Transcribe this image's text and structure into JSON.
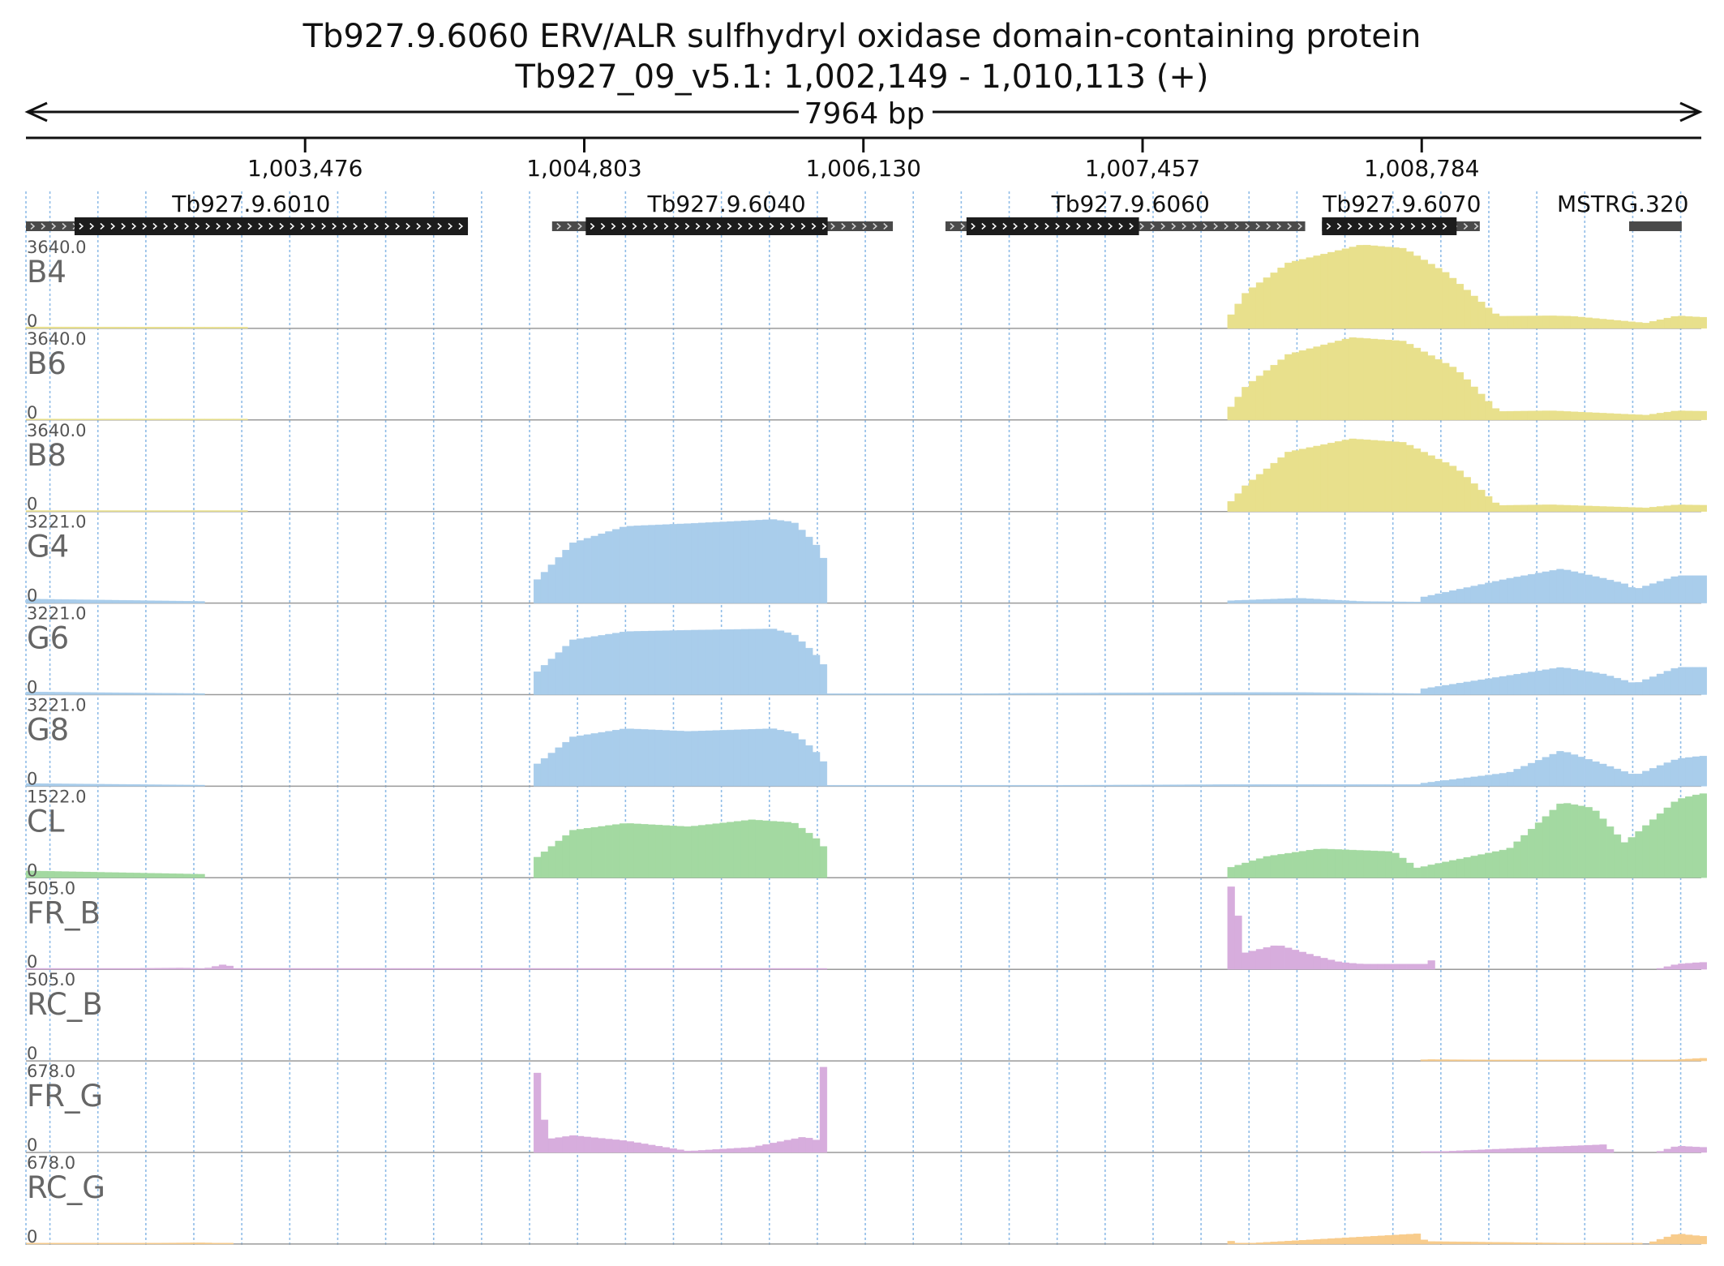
{
  "title": "Tb927.9.6060  ERV/ALR sulfhydryl oxidase domain-containing protein",
  "subtitle": "Tb927_09_v5.1: 1,002,149 - 1,010,113 (+)",
  "span_label": "7964 bp",
  "colors": {
    "bloodstream": "#e8e08c",
    "procyclic": "#a9cdeb",
    "cl": "#a3d9a1",
    "fr": "#d7addd",
    "rc": "#f8cc8c",
    "gridline": "#6aa6e0",
    "gene_box": "#1c1c1c",
    "utr_box": "#4a4a4a"
  },
  "chart_data": {
    "type": "area",
    "region": {
      "chrom": "Tb927_09_v5.1",
      "start": 1002149,
      "end": 1010113,
      "strand": "+",
      "length_bp": 7964
    },
    "ruler_ticks": [
      {
        "pos": 1003476,
        "label": "1,003,476"
      },
      {
        "pos": 1004803,
        "label": "1,004,803"
      },
      {
        "pos": 1006130,
        "label": "1,006,130"
      },
      {
        "pos": 1007457,
        "label": "1,007,457"
      },
      {
        "pos": 1008784,
        "label": "1,008,784"
      }
    ],
    "genes": [
      {
        "name": "Tb927.9.6010",
        "start": 1002149,
        "end": 1004250,
        "cds_start": 1002380,
        "cds_end": 1004250,
        "strand": "+",
        "label_pos": 1003220
      },
      {
        "name": "Tb927.9.6040",
        "start": 1004650,
        "end": 1006270,
        "cds_start": 1004810,
        "cds_end": 1005960,
        "strand": "+",
        "label_pos": 1005480
      },
      {
        "name": "Tb927.9.6060",
        "start": 1006520,
        "end": 1008230,
        "cds_start": 1006620,
        "cds_end": 1007440,
        "strand": "+",
        "label_pos": 1007400
      },
      {
        "name": "Tb927.9.6070",
        "start": 1008310,
        "end": 1009060,
        "cds_start": 1008310,
        "cds_end": 1008950,
        "strand": "+",
        "label_pos": 1008690
      },
      {
        "name": "MSTRG.320",
        "start": 1009770,
        "end": 1010020,
        "cds_start": null,
        "cds_end": null,
        "strand": "",
        "label_pos": 1009740
      }
    ],
    "tracks": [
      {
        "name": "B4",
        "max": 3640.0,
        "max_label": "3640.0",
        "min_label": "0",
        "color": "#e8e08c",
        "profile": [
          [
            1002149,
            60
          ],
          [
            1003200,
            50
          ],
          [
            1003200,
            0
          ],
          [
            1007850,
            0
          ],
          [
            1007850,
            200
          ],
          [
            1007950,
            1500
          ],
          [
            1008150,
            2700
          ],
          [
            1008500,
            3450
          ],
          [
            1008700,
            3300
          ],
          [
            1008900,
            2300
          ],
          [
            1009150,
            500
          ],
          [
            1009400,
            520
          ],
          [
            1009500,
            500
          ],
          [
            1009850,
            220
          ],
          [
            1010000,
            520
          ],
          [
            1010113,
            460
          ]
        ]
      },
      {
        "name": "B6",
        "max": 3640.0,
        "max_label": "3640.0",
        "min_label": "0",
        "color": "#e8e08c",
        "profile": [
          [
            1002149,
            40
          ],
          [
            1003200,
            30
          ],
          [
            1003200,
            0
          ],
          [
            1007850,
            0
          ],
          [
            1007850,
            200
          ],
          [
            1007950,
            1400
          ],
          [
            1008150,
            2700
          ],
          [
            1008450,
            3400
          ],
          [
            1008700,
            3250
          ],
          [
            1008950,
            2100
          ],
          [
            1009150,
            350
          ],
          [
            1009400,
            380
          ],
          [
            1009850,
            200
          ],
          [
            1010000,
            380
          ],
          [
            1010113,
            360
          ]
        ]
      },
      {
        "name": "B8",
        "max": 3640.0,
        "max_label": "3640.0",
        "min_label": "0",
        "color": "#e8e08c",
        "profile": [
          [
            1002149,
            30
          ],
          [
            1003200,
            20
          ],
          [
            1003200,
            0
          ],
          [
            1007850,
            0
          ],
          [
            1007850,
            150
          ],
          [
            1007950,
            1100
          ],
          [
            1008150,
            2450
          ],
          [
            1008450,
            3000
          ],
          [
            1008700,
            2850
          ],
          [
            1008950,
            1800
          ],
          [
            1009150,
            250
          ],
          [
            1009400,
            280
          ],
          [
            1009850,
            150
          ],
          [
            1010000,
            280
          ],
          [
            1010113,
            260
          ]
        ]
      },
      {
        "name": "G4",
        "max": 3221.0,
        "max_label": "3221.0",
        "min_label": "0",
        "color": "#a9cdeb",
        "profile": [
          [
            1002149,
            150
          ],
          [
            1003000,
            60
          ],
          [
            1003000,
            0
          ],
          [
            1004560,
            0
          ],
          [
            1004560,
            700
          ],
          [
            1004750,
            2200
          ],
          [
            1005000,
            2800
          ],
          [
            1005300,
            2900
          ],
          [
            1005700,
            3050
          ],
          [
            1005800,
            2950
          ],
          [
            1005900,
            2200
          ],
          [
            1005950,
            1500
          ],
          [
            1005960,
            0
          ],
          [
            1007850,
            0
          ],
          [
            1007850,
            80
          ],
          [
            1008200,
            180
          ],
          [
            1008500,
            60
          ],
          [
            1008770,
            40
          ],
          [
            1008780,
            200
          ],
          [
            1009200,
            900
          ],
          [
            1009450,
            1250
          ],
          [
            1009650,
            900
          ],
          [
            1009750,
            700
          ],
          [
            1009800,
            500
          ],
          [
            1010000,
            1000
          ],
          [
            1010113,
            1000
          ]
        ]
      },
      {
        "name": "G6",
        "max": 3221.0,
        "max_label": "3221.0",
        "min_label": "0",
        "color": "#a9cdeb",
        "profile": [
          [
            1002149,
            100
          ],
          [
            1003000,
            40
          ],
          [
            1003000,
            0
          ],
          [
            1004560,
            0
          ],
          [
            1004560,
            700
          ],
          [
            1004750,
            2000
          ],
          [
            1005000,
            2300
          ],
          [
            1005300,
            2350
          ],
          [
            1005700,
            2400
          ],
          [
            1005800,
            2200
          ],
          [
            1005900,
            1500
          ],
          [
            1005950,
            1000
          ],
          [
            1005960,
            0
          ],
          [
            1006900,
            50
          ],
          [
            1007850,
            80
          ],
          [
            1008200,
            80
          ],
          [
            1008770,
            40
          ],
          [
            1008780,
            200
          ],
          [
            1009200,
            700
          ],
          [
            1009450,
            1000
          ],
          [
            1009650,
            750
          ],
          [
            1009800,
            400
          ],
          [
            1010000,
            1000
          ],
          [
            1010113,
            1000
          ]
        ]
      },
      {
        "name": "G8",
        "max": 3221.0,
        "max_label": "3221.0",
        "min_label": "0",
        "color": "#a9cdeb",
        "profile": [
          [
            1002149,
            100
          ],
          [
            1003000,
            40
          ],
          [
            1003000,
            0
          ],
          [
            1004560,
            0
          ],
          [
            1004560,
            700
          ],
          [
            1004750,
            1800
          ],
          [
            1005000,
            2100
          ],
          [
            1005300,
            2000
          ],
          [
            1005700,
            2100
          ],
          [
            1005800,
            1950
          ],
          [
            1005900,
            1300
          ],
          [
            1005950,
            800
          ],
          [
            1005960,
            0
          ],
          [
            1007850,
            60
          ],
          [
            1008770,
            60
          ],
          [
            1008780,
            100
          ],
          [
            1009200,
            500
          ],
          [
            1009450,
            1300
          ],
          [
            1009650,
            800
          ],
          [
            1009800,
            400
          ],
          [
            1010000,
            1000
          ],
          [
            1010113,
            1100
          ]
        ]
      },
      {
        "name": "CL",
        "max": 1522.0,
        "max_label": "1522.0",
        "min_label": "0",
        "color": "#a3d9a1",
        "profile": [
          [
            1002149,
            120
          ],
          [
            1003000,
            60
          ],
          [
            1003000,
            0
          ],
          [
            1004560,
            0
          ],
          [
            1004560,
            300
          ],
          [
            1004750,
            820
          ],
          [
            1005000,
            940
          ],
          [
            1005300,
            880
          ],
          [
            1005600,
            1000
          ],
          [
            1005800,
            950
          ],
          [
            1005900,
            700
          ],
          [
            1005950,
            500
          ],
          [
            1005960,
            0
          ],
          [
            1007850,
            0
          ],
          [
            1007850,
            150
          ],
          [
            1008050,
            370
          ],
          [
            1008300,
            500
          ],
          [
            1008650,
            450
          ],
          [
            1008770,
            150
          ],
          [
            1008800,
            200
          ],
          [
            1009200,
            500
          ],
          [
            1009450,
            1300
          ],
          [
            1009600,
            1200
          ],
          [
            1009700,
            800
          ],
          [
            1009750,
            600
          ],
          [
            1010000,
            1350
          ],
          [
            1010113,
            1450
          ]
        ]
      },
      {
        "name": "FR_B",
        "max": 505.0,
        "max_label": "505.0",
        "min_label": "0",
        "color": "#d7addd",
        "profile": [
          [
            1002149,
            0
          ],
          [
            1002900,
            8
          ],
          [
            1003000,
            4
          ],
          [
            1003100,
            30
          ],
          [
            1003150,
            0
          ],
          [
            1004600,
            4
          ],
          [
            1005950,
            0
          ],
          [
            1007850,
            0
          ],
          [
            1007850,
            500
          ],
          [
            1007900,
            450
          ],
          [
            1007930,
            90
          ],
          [
            1008100,
            140
          ],
          [
            1008300,
            70
          ],
          [
            1008400,
            40
          ],
          [
            1008500,
            30
          ],
          [
            1008800,
            30
          ],
          [
            1008810,
            100
          ],
          [
            1008850,
            0
          ],
          [
            1009900,
            0
          ],
          [
            1010000,
            30
          ],
          [
            1010113,
            40
          ]
        ]
      },
      {
        "name": "RC_B",
        "max": 505.0,
        "max_label": "505.0",
        "min_label": "0",
        "color": "#f8cc8c",
        "profile": [
          [
            1002149,
            0
          ],
          [
            1008770,
            0
          ],
          [
            1008800,
            8
          ],
          [
            1009900,
            0
          ],
          [
            1010113,
            15
          ]
        ]
      },
      {
        "name": "FR_G",
        "max": 678.0,
        "max_label": "678.0",
        "min_label": "0",
        "color": "#d7addd",
        "profile": [
          [
            1002149,
            0
          ],
          [
            1004560,
            0
          ],
          [
            1004560,
            620
          ],
          [
            1004600,
            600
          ],
          [
            1004620,
            100
          ],
          [
            1004750,
            130
          ],
          [
            1005000,
            90
          ],
          [
            1005300,
            10
          ],
          [
            1005600,
            40
          ],
          [
            1005850,
            120
          ],
          [
            1005920,
            90
          ],
          [
            1005920,
            660
          ],
          [
            1005960,
            650
          ],
          [
            1005960,
            0
          ],
          [
            1008770,
            0
          ],
          [
            1009650,
            60
          ],
          [
            1009700,
            0
          ],
          [
            1009900,
            0
          ],
          [
            1010000,
            50
          ],
          [
            1010113,
            40
          ]
        ]
      },
      {
        "name": "RC_G",
        "max": 678.0,
        "max_label": "678.0",
        "min_label": "0",
        "color": "#f8cc8c",
        "profile": [
          [
            1002149,
            0
          ],
          [
            1003000,
            10
          ],
          [
            1003150,
            0
          ],
          [
            1004600,
            0
          ],
          [
            1007850,
            0
          ],
          [
            1007850,
            50
          ],
          [
            1007900,
            0
          ],
          [
            1008780,
            80
          ],
          [
            1008800,
            20
          ],
          [
            1009850,
            0
          ],
          [
            1010000,
            80
          ],
          [
            1010113,
            60
          ]
        ]
      }
    ],
    "axis": {
      "xlim": [
        1002149,
        1010113
      ],
      "grid_interval_bp": 228,
      "legend": "none"
    }
  }
}
